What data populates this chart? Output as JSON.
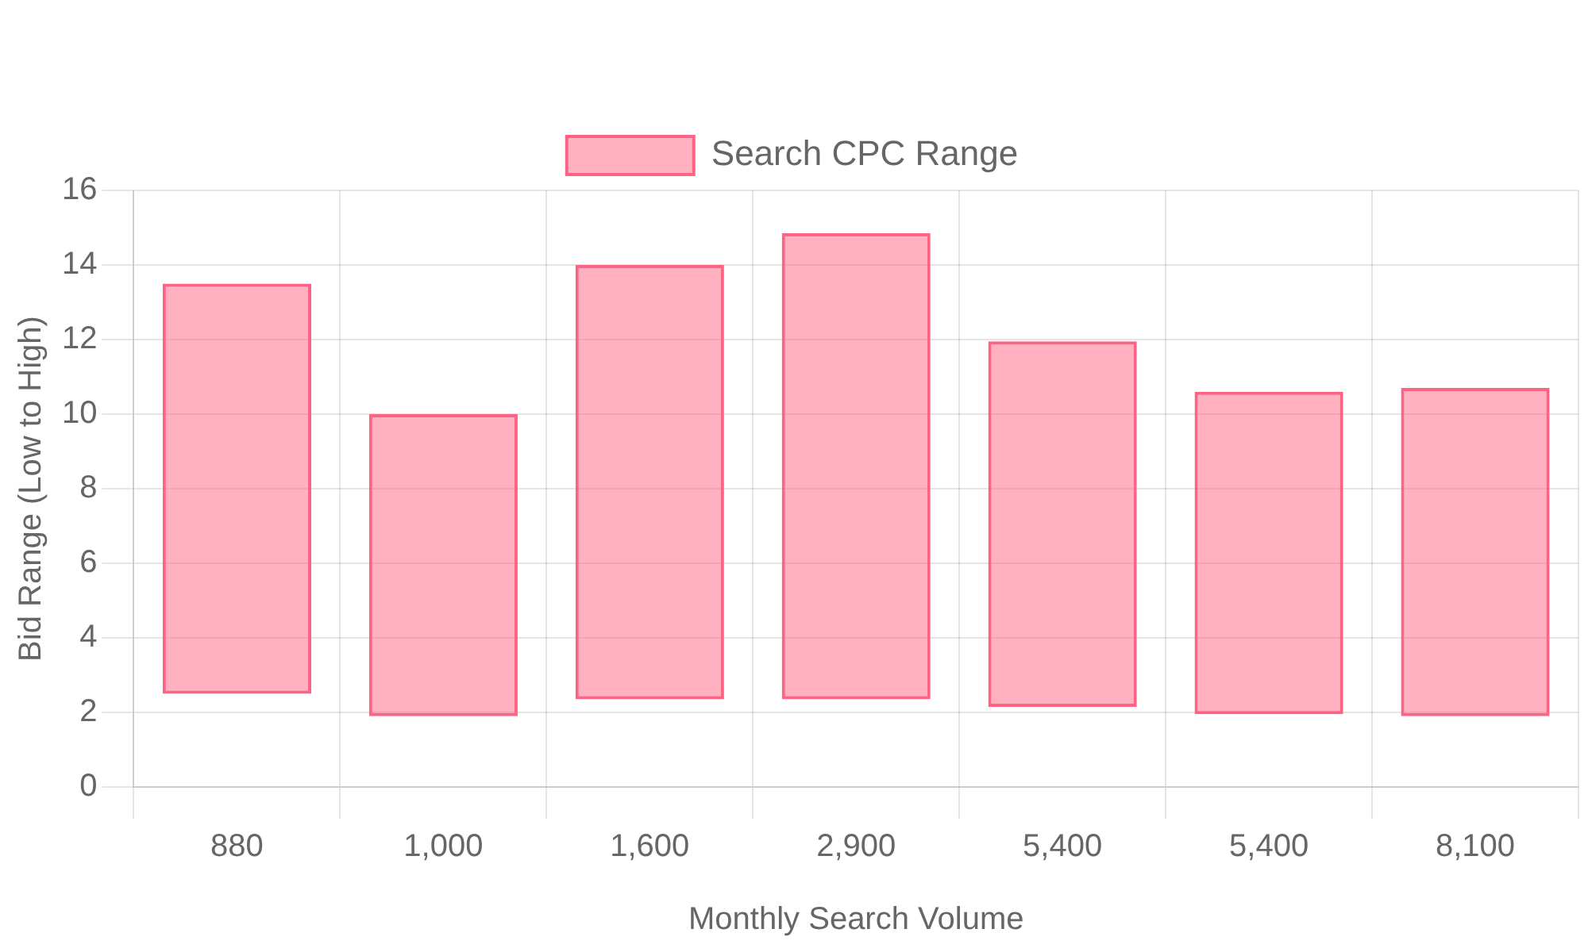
{
  "chart_data": {
    "type": "bar",
    "xlabel": "Monthly Search Volume",
    "ylabel": "Bid Range (Low to High)",
    "categories": [
      "880",
      "1,000",
      "1,600",
      "2,900",
      "5,400",
      "5,400",
      "8,100"
    ],
    "series": [
      {
        "name": "Search CPC Range",
        "color": "#ff6384",
        "values": [
          11,
          8.1,
          11.65,
          12.5,
          9.8,
          8.65,
          8.8
        ],
        "base": [
          2.5,
          1.9,
          2.35,
          2.35,
          2.15,
          1.95,
          1.9
        ]
      }
    ],
    "ylim": [
      0,
      16
    ],
    "yticks": [
      0,
      2,
      4,
      6,
      8,
      10,
      12,
      14,
      16
    ],
    "grid": true,
    "legend": "top"
  }
}
